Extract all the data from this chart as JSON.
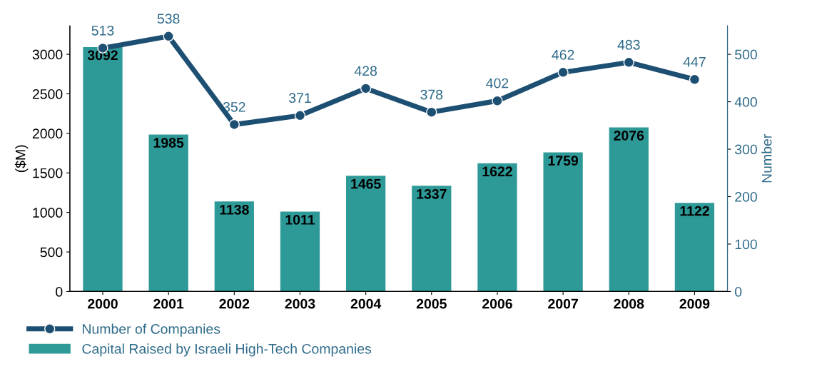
{
  "chart_data": {
    "type": "bar",
    "ylabel": "($M)",
    "y2label": "Number",
    "categories": [
      "2000",
      "2001",
      "2002",
      "2003",
      "2004",
      "2005",
      "2006",
      "2007",
      "2008",
      "2009"
    ],
    "series": [
      {
        "name": "Capital Raised by Israeli High-Tech Companies",
        "color": "#2e9a98",
        "values": [
          3092,
          1985,
          1138,
          1011,
          1465,
          1337,
          1622,
          1759,
          2076,
          1122
        ]
      },
      {
        "name": "Number of Companies",
        "type": "line",
        "axis": "y2",
        "color": "#1d4f73",
        "marker": "circle",
        "values": [
          513,
          538,
          352,
          371,
          428,
          378,
          402,
          462,
          483,
          447
        ]
      }
    ],
    "ylim": [
      0,
      3360
    ],
    "yticks": [
      0,
      500,
      1000,
      1500,
      2000,
      2500,
      3000
    ],
    "y2lim": [
      0,
      560
    ],
    "y2ticks": [
      0,
      100,
      200,
      300,
      400,
      500
    ],
    "data_labels": true,
    "grid": false,
    "legend": "bottom left"
  }
}
